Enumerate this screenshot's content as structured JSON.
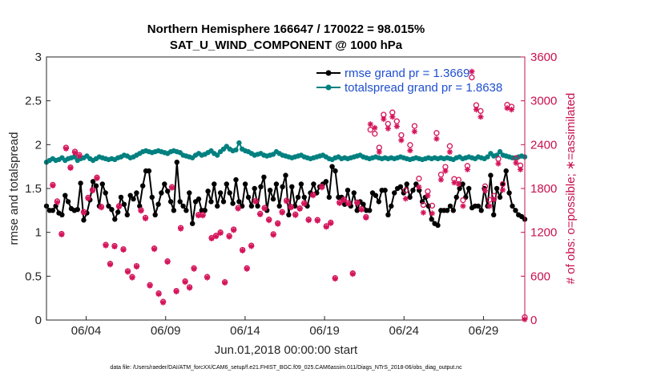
{
  "chart_data": {
    "type": "line",
    "title_line1": "Northern Hemisphere 166647 / 170022 = 98.015%",
    "title_line2": "SAT_U_WIND_COMPONENT @ 1000 hPa",
    "xlabel": "Jun.01,2018 00:00:00 start",
    "ylabel_left": "rmse and totalspread",
    "ylabel_right": "# of obs: o=possible; ∗=assimilated",
    "footer": "data file: /Users/raeder/DAI/ATM_forcXX/CAM6_setup/f.e21.FHIST_BGC.f09_025.CAM6assim.011/Diags_NTrS_2018-06/obs_diag_output.nc",
    "xlim": [
      1,
      31.1
    ],
    "ylim_left": [
      0,
      3
    ],
    "ylim_right": [
      0,
      3600
    ],
    "x_ticks": [
      3.5,
      8.5,
      13.5,
      18.5,
      23.5,
      28.5
    ],
    "x_tick_labels": [
      "06/04",
      "06/09",
      "06/14",
      "06/19",
      "06/24",
      "06/29"
    ],
    "y_ticks_left": [
      "0",
      "0.5",
      "1",
      "1.5",
      "2",
      "2.5",
      "3"
    ],
    "y_ticks_right": [
      "0",
      "600",
      "1200",
      "1800",
      "2400",
      "3000",
      "3600"
    ],
    "legend_position": "top-right",
    "colors": {
      "rmse": "#000000",
      "spread": "#008080",
      "obs": "#d4145a",
      "right_axis": "#c8104f"
    },
    "series": [
      {
        "name": "rmse grand pr = 1.3669",
        "axis": "left",
        "values": [
          1.3,
          1.25,
          1.25,
          1.3,
          1.22,
          1.2,
          1.42,
          1.35,
          1.27,
          1.25,
          1.26,
          1.56,
          1.14,
          1.22,
          1.37,
          1.58,
          1.53,
          1.3,
          1.55,
          1.45,
          1.3,
          1.26,
          1.15,
          1.23,
          1.4,
          1.32,
          1.2,
          1.42,
          1.38,
          1.45,
          1.3,
          1.53,
          1.7,
          1.7,
          1.4,
          1.2,
          1.32,
          1.45,
          1.55,
          1.47,
          1.35,
          1.25,
          1.8,
          1.35,
          1.3,
          1.25,
          1.45,
          1.1,
          1.35,
          1.38,
          1.25,
          1.25,
          1.47,
          1.35,
          1.55,
          1.3,
          1.45,
          1.35,
          1.55,
          1.45,
          1.33,
          1.6,
          1.35,
          1.3,
          1.55,
          1.4,
          1.3,
          1.5,
          1.3,
          1.52,
          1.63,
          1.25,
          1.48,
          1.38,
          1.55,
          1.3,
          1.52,
          1.65,
          1.2,
          1.52,
          1.3,
          1.4,
          1.55,
          1.4,
          1.3,
          1.45,
          1.55,
          1.45,
          1.52,
          1.55,
          1.58,
          1.4,
          1.75,
          1.7,
          1.4,
          1.4,
          1.32,
          1.48,
          1.3,
          1.45,
          1.25,
          1.35,
          1.32,
          1.25,
          1.25,
          1.45,
          1.42,
          1.35,
          1.48,
          1.48,
          1.2,
          1.3,
          1.45,
          1.5,
          1.52,
          1.45,
          1.55,
          1.4,
          1.48,
          1.55,
          1.48,
          1.35,
          1.4,
          1.3,
          1.15,
          1.1,
          1.08,
          1.25,
          1.25,
          1.25,
          1.3,
          1.25,
          1.4,
          1.5,
          1.55,
          1.4,
          1.5,
          1.28,
          1.3,
          1.3,
          1.25,
          1.5,
          1.3,
          1.65,
          1.2,
          1.5,
          1.4,
          1.55,
          1.7,
          1.45,
          1.3,
          1.25,
          1.2,
          1.18,
          1.15
        ]
      },
      {
        "name": "totalspread grand pr = 1.8638",
        "axis": "left",
        "values": [
          1.8,
          1.82,
          1.84,
          1.82,
          1.83,
          1.85,
          1.82,
          1.84,
          1.85,
          1.86,
          1.82,
          1.84,
          1.85,
          1.87,
          1.84,
          1.82,
          1.84,
          1.86,
          1.85,
          1.84,
          1.83,
          1.84,
          1.83,
          1.85,
          1.86,
          1.88,
          1.87,
          1.85,
          1.86,
          1.88,
          1.9,
          1.92,
          1.93,
          1.92,
          1.91,
          1.92,
          1.93,
          1.92,
          1.91,
          1.9,
          1.92,
          1.93,
          1.92,
          1.91,
          1.88,
          1.87,
          1.86,
          1.85,
          1.88,
          1.9,
          1.88,
          1.89,
          1.91,
          1.93,
          1.9,
          1.88,
          1.92,
          1.95,
          1.98,
          1.95,
          1.93,
          1.94,
          2.02,
          1.95,
          1.93,
          1.92,
          1.9,
          1.88,
          1.89,
          1.9,
          1.88,
          1.87,
          1.88,
          1.89,
          1.92,
          1.9,
          1.88,
          1.87,
          1.86,
          1.85,
          1.86,
          1.87,
          1.88,
          1.86,
          1.85,
          1.84,
          1.85,
          1.86,
          1.87,
          1.88,
          1.86,
          1.84,
          1.83,
          1.85,
          1.86,
          1.84,
          1.85,
          1.84,
          1.85,
          1.86,
          1.87,
          1.88,
          1.86,
          1.85,
          1.84,
          1.85,
          1.86,
          1.85,
          1.84,
          1.85,
          1.84,
          1.85,
          1.84,
          1.85,
          1.86,
          1.85,
          1.84,
          1.83,
          1.84,
          1.85,
          1.84,
          1.83,
          1.84,
          1.85,
          1.84,
          1.85,
          1.84,
          1.85,
          1.84,
          1.85,
          1.84,
          1.83,
          1.85,
          1.86,
          1.84,
          1.85,
          1.86,
          1.85,
          1.84,
          1.86,
          1.85,
          1.84,
          1.86,
          1.9,
          1.87,
          1.88,
          1.92,
          1.88,
          1.87,
          1.86,
          1.85,
          1.85,
          1.86,
          1.87,
          1.86
        ]
      },
      {
        "name": "obs possible (o)",
        "axis": "right",
        "values": [
          1850,
          1625,
          1180,
          2360,
          2090,
          2305,
          2260,
          1480,
          1675,
          1780,
          1950,
          1550,
          1030,
          770,
          1015,
          1560,
          970,
          670,
          590,
          740,
          1505,
          1400,
          480,
          980,
          365,
          250,
          805,
          1820,
          400,
          1260,
          530,
          450,
          710,
          1440,
          1440,
          590,
          1125,
          1155,
          1200,
          520,
          1150,
          1240,
          1535,
          960,
          710,
          1020,
          1630,
          1455,
          1535,
          1375,
          1175,
          1325,
          1480,
          1635,
          1550,
          1445,
          1530,
          1600,
          1375,
          1715,
          1370,
          1825,
          1285,
          1335,
          575,
          1610,
          1650,
          1600,
          640,
          1610,
          1520,
          1410,
          2605,
          2550,
          2360,
          2810,
          2685,
          2840,
          2720,
          2530,
          1775,
          2395,
          2655,
          1935,
          1575,
          1760,
          1565,
          2560,
          1990,
          2095,
          2380,
          1930,
          1920,
          1640,
          2110,
          3320,
          2940,
          2860,
          1830,
          1645,
          1700,
          2205,
          1860,
          2945,
          2920,
          2215,
          2115,
          40
        ]
      },
      {
        "name": "obs assimilated (∗)",
        "axis": "right",
        "values": [
          1840,
          1610,
          1170,
          2345,
          2080,
          2290,
          2245,
          1470,
          1665,
          1770,
          1940,
          1540,
          1020,
          760,
          1005,
          1550,
          960,
          660,
          580,
          730,
          1495,
          1390,
          470,
          970,
          355,
          240,
          795,
          1810,
          390,
          1250,
          520,
          440,
          700,
          1430,
          1430,
          580,
          1115,
          1145,
          1190,
          510,
          1140,
          1230,
          1525,
          950,
          700,
          1010,
          1620,
          1445,
          1525,
          1365,
          1165,
          1315,
          1470,
          1625,
          1540,
          1435,
          1520,
          1590,
          1365,
          1705,
          1360,
          1815,
          1275,
          1325,
          565,
          1600,
          1640,
          1590,
          630,
          1600,
          1510,
          1400,
          2680,
          2630,
          2300,
          2750,
          2620,
          2780,
          2650,
          2460,
          1660,
          2320,
          2580,
          1820,
          1470,
          1700,
          1460,
          2480,
          1920,
          2040,
          2300,
          1880,
          1860,
          1560,
          2060,
          3400,
          2880,
          2780,
          1770,
          1560,
          1650,
          2140,
          1780,
          2900,
          2880,
          2150,
          2060,
          10
        ]
      }
    ]
  }
}
